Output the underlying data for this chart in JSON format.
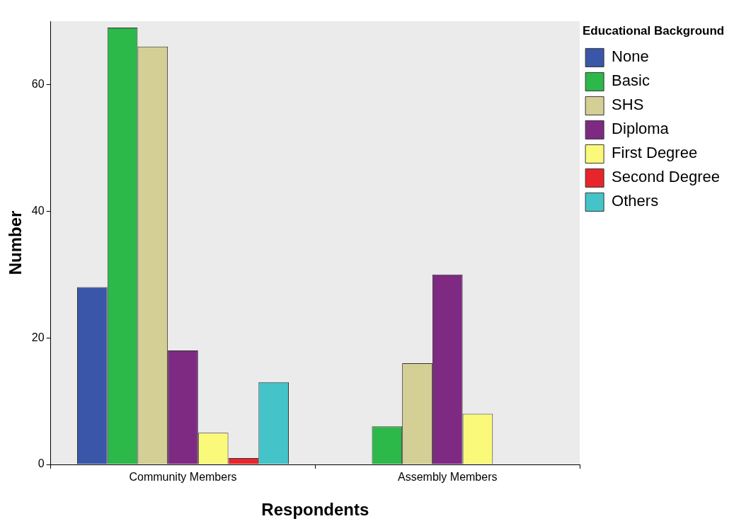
{
  "chart_data": {
    "type": "bar",
    "xlabel": "Respondents",
    "ylabel": "Number",
    "legend_title": "Educational Background",
    "categories": [
      "Community Members",
      "Assembly Members"
    ],
    "series": [
      {
        "name": "None",
        "color": "#3a56a8",
        "values": [
          28,
          null
        ]
      },
      {
        "name": "Basic",
        "color": "#2db84a",
        "values": [
          69,
          6
        ]
      },
      {
        "name": "SHS",
        "color": "#d4cf94",
        "values": [
          66,
          16
        ]
      },
      {
        "name": "Diploma",
        "color": "#7e2a82",
        "values": [
          18,
          30
        ]
      },
      {
        "name": "First Degree",
        "color": "#fbf97a",
        "values": [
          5,
          8
        ]
      },
      {
        "name": "Second Degree",
        "color": "#e8252a",
        "values": [
          1,
          null
        ]
      },
      {
        "name": "Others",
        "color": "#44c4c8",
        "values": [
          13,
          null
        ]
      }
    ],
    "ylim": [
      0,
      70
    ],
    "yticks": [
      0,
      20,
      40,
      60
    ],
    "grid": false,
    "legend": "right"
  }
}
